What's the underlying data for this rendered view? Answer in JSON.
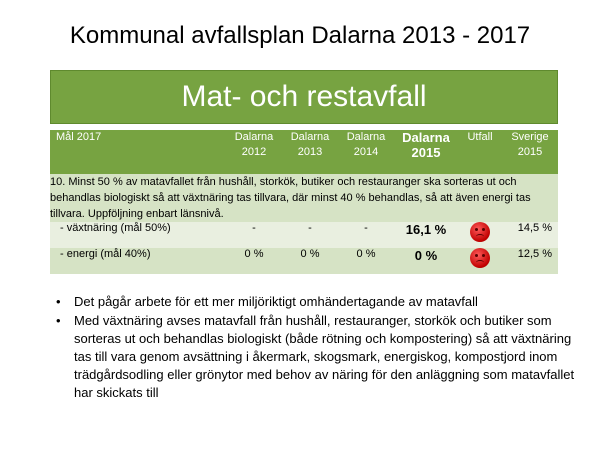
{
  "title": "Kommunal avfallsplan Dalarna 2013 - 2017",
  "banner": "Mat- och restavfall",
  "colors": {
    "banner_green": "#77a341",
    "row_light": "#e9efe0",
    "row_dark": "#d6e3c5",
    "face_red": "#c00000"
  },
  "table": {
    "headers": {
      "goal": "Mål 2017",
      "d2012": [
        "Dalarna",
        "2012"
      ],
      "d2013": [
        "Dalarna",
        "2013"
      ],
      "d2014": [
        "Dalarna",
        "2014"
      ],
      "d2015": [
        "Dalarna",
        "2015"
      ],
      "outcome": "Utfall",
      "sverige": [
        "Sverige",
        "2015"
      ]
    },
    "description": "10. Minst 50 % av matavfallet från hushåll, storkök, butiker och restauranger ska sorteras ut och behandlas biologiskt så att växtnäring tas tillvara, där minst 40 % behandlas, så att även energi tas tillvara. Uppföljning enbart länsnivå.",
    "rows": [
      {
        "label": "- växtnäring (mål 50%)",
        "d2012": "-",
        "d2013": "-",
        "d2014": "-",
        "d2015": "16,1 %",
        "outcome_icon": "sad-face-icon",
        "sverige": "14,5 %"
      },
      {
        "label": "- energi (mål 40%)",
        "d2012": "0 %",
        "d2013": "0 %",
        "d2014": "0 %",
        "d2015": "0 %",
        "outcome_icon": "sad-face-icon",
        "sverige": "12,5 %"
      }
    ]
  },
  "notes": [
    "Det pågår arbete för ett mer miljöriktigt omhändertagande av matavfall",
    "Med växtnäring avses matavfall från hushåll, restauranger, storkök och butiker som sorteras ut och behandlas biologiskt (både rötning och kompostering) så att växtnäring tas till vara genom avsättning i åkermark, skogsmark, energiskog, kompostjord inom trädgårdsodling eller grönytor med behov av näring för den anläggning som matavfallet har skickats till"
  ]
}
